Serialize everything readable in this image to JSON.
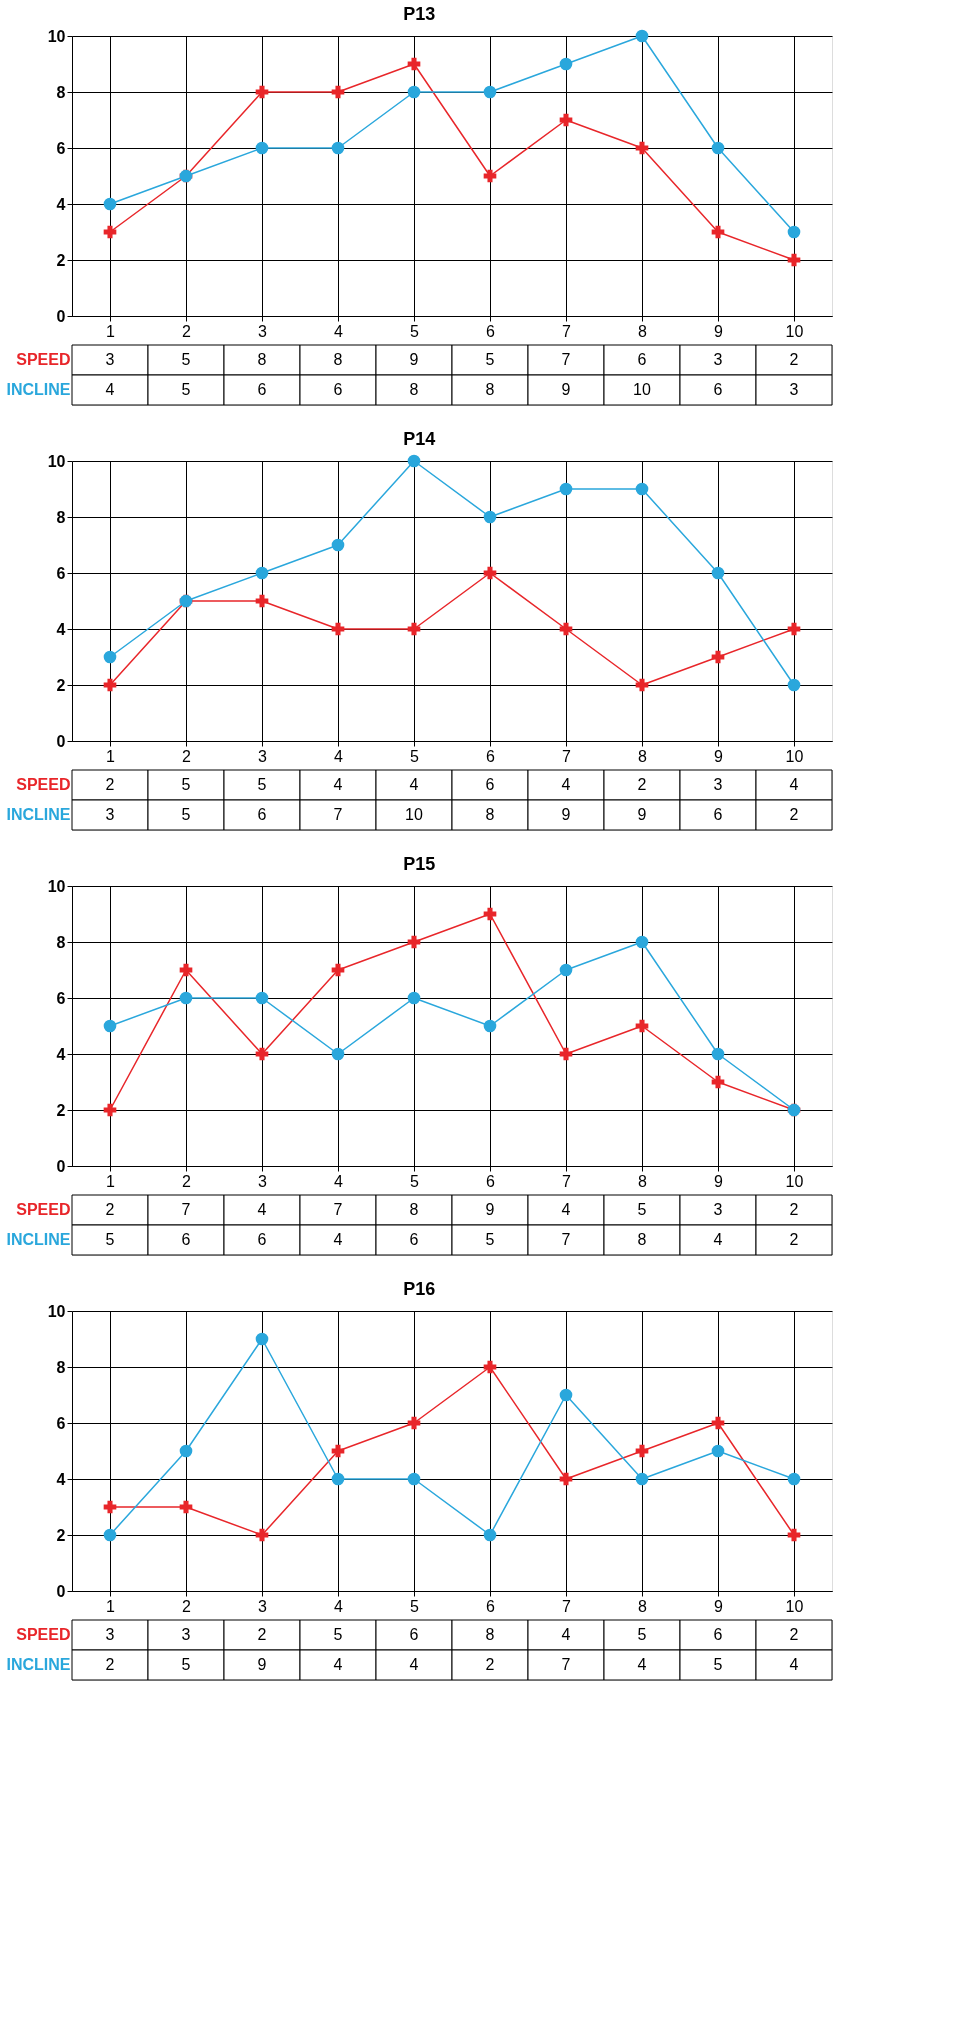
{
  "chart_data": [
    {
      "type": "line",
      "title": "P13",
      "categories": [
        "1",
        "2",
        "3",
        "4",
        "5",
        "6",
        "7",
        "8",
        "9",
        "10"
      ],
      "ylim": [
        0,
        10
      ],
      "yticks": [
        0,
        2,
        4,
        6,
        8,
        10
      ],
      "grid": true,
      "data_labels": true,
      "series": [
        {
          "name": "SPEED",
          "color": "#e8262a",
          "marker": "cross",
          "values": [
            3,
            5,
            8,
            8,
            9,
            5,
            7,
            6,
            3,
            2
          ]
        },
        {
          "name": "INCLINE",
          "color": "#2aa7dc",
          "marker": "circle",
          "values": [
            4,
            5,
            6,
            6,
            8,
            8,
            9,
            10,
            6,
            3
          ]
        }
      ]
    },
    {
      "type": "line",
      "title": "P14",
      "categories": [
        "1",
        "2",
        "3",
        "4",
        "5",
        "6",
        "7",
        "8",
        "9",
        "10"
      ],
      "ylim": [
        0,
        10
      ],
      "yticks": [
        0,
        2,
        4,
        6,
        8,
        10
      ],
      "grid": true,
      "data_labels": true,
      "series": [
        {
          "name": "SPEED",
          "color": "#e8262a",
          "marker": "cross",
          "values": [
            2,
            5,
            5,
            4,
            4,
            6,
            4,
            2,
            3,
            4
          ]
        },
        {
          "name": "INCLINE",
          "color": "#2aa7dc",
          "marker": "circle",
          "values": [
            3,
            5,
            6,
            7,
            10,
            8,
            9,
            9,
            6,
            2
          ]
        }
      ]
    },
    {
      "type": "line",
      "title": "P15",
      "categories": [
        "1",
        "2",
        "3",
        "4",
        "5",
        "6",
        "7",
        "8",
        "9",
        "10"
      ],
      "ylim": [
        0,
        10
      ],
      "yticks": [
        0,
        2,
        4,
        6,
        8,
        10
      ],
      "grid": true,
      "data_labels": true,
      "series": [
        {
          "name": "SPEED",
          "color": "#e8262a",
          "marker": "cross",
          "values": [
            2,
            7,
            4,
            7,
            8,
            9,
            4,
            5,
            3,
            2
          ]
        },
        {
          "name": "INCLINE",
          "color": "#2aa7dc",
          "marker": "circle",
          "values": [
            5,
            6,
            6,
            4,
            6,
            5,
            7,
            8,
            4,
            2
          ]
        }
      ]
    },
    {
      "type": "line",
      "title": "P16",
      "categories": [
        "1",
        "2",
        "3",
        "4",
        "5",
        "6",
        "7",
        "8",
        "9",
        "10"
      ],
      "ylim": [
        0,
        10
      ],
      "yticks": [
        0,
        2,
        4,
        6,
        8,
        10
      ],
      "grid": true,
      "data_labels": true,
      "series": [
        {
          "name": "SPEED",
          "color": "#e8262a",
          "marker": "cross",
          "values": [
            3,
            3,
            2,
            5,
            6,
            8,
            4,
            5,
            6,
            2
          ]
        },
        {
          "name": "INCLINE",
          "color": "#2aa7dc",
          "marker": "circle",
          "values": [
            2,
            5,
            9,
            4,
            4,
            2,
            7,
            4,
            5,
            4
          ]
        }
      ]
    }
  ]
}
